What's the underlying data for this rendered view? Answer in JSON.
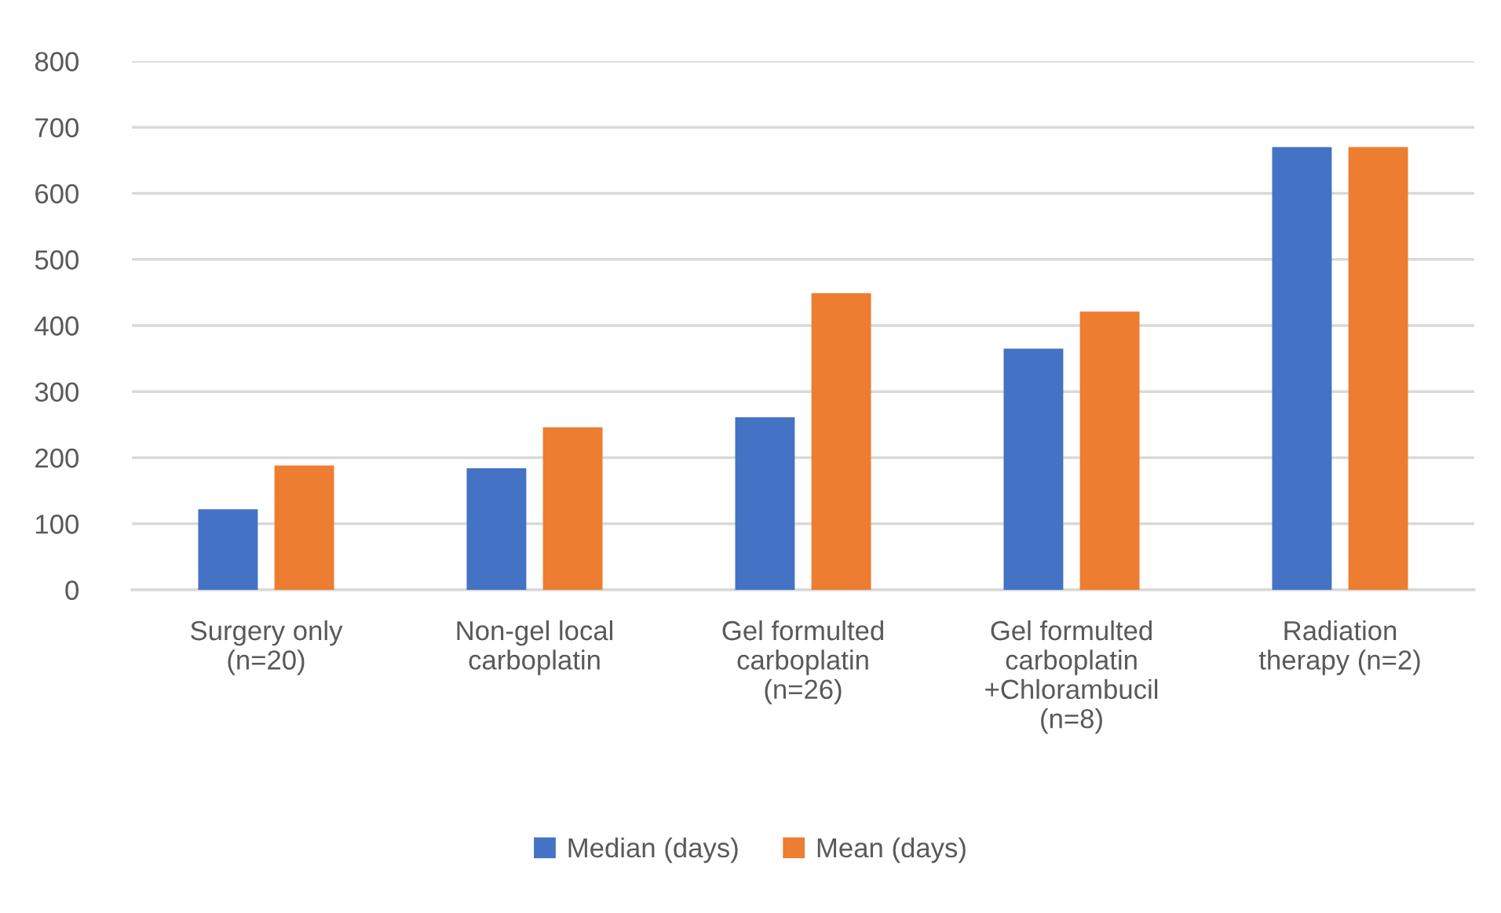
{
  "chart_data": {
    "type": "bar",
    "categories": [
      "Surgery only\n(n=20)",
      "Non-gel local\ncarboplatin",
      "Gel formulted\ncarboplatin\n(n=26)",
      "Gel formulted\ncarboplatin\n+Chlorambucil\n(n=8)",
      "Radiation\ntherapy (n=2)"
    ],
    "series": [
      {
        "name": "Median (days)",
        "color": "#4472c4",
        "values": [
          122,
          184,
          261,
          365,
          670
        ]
      },
      {
        "name": "Mean (days)",
        "color": "#ed7d31",
        "values": [
          188,
          246,
          449,
          421,
          670
        ]
      }
    ],
    "ylim": [
      0,
      800
    ],
    "yticks": [
      0,
      100,
      200,
      300,
      400,
      500,
      600,
      700,
      800
    ],
    "grid": "y",
    "legend": "bottom"
  }
}
